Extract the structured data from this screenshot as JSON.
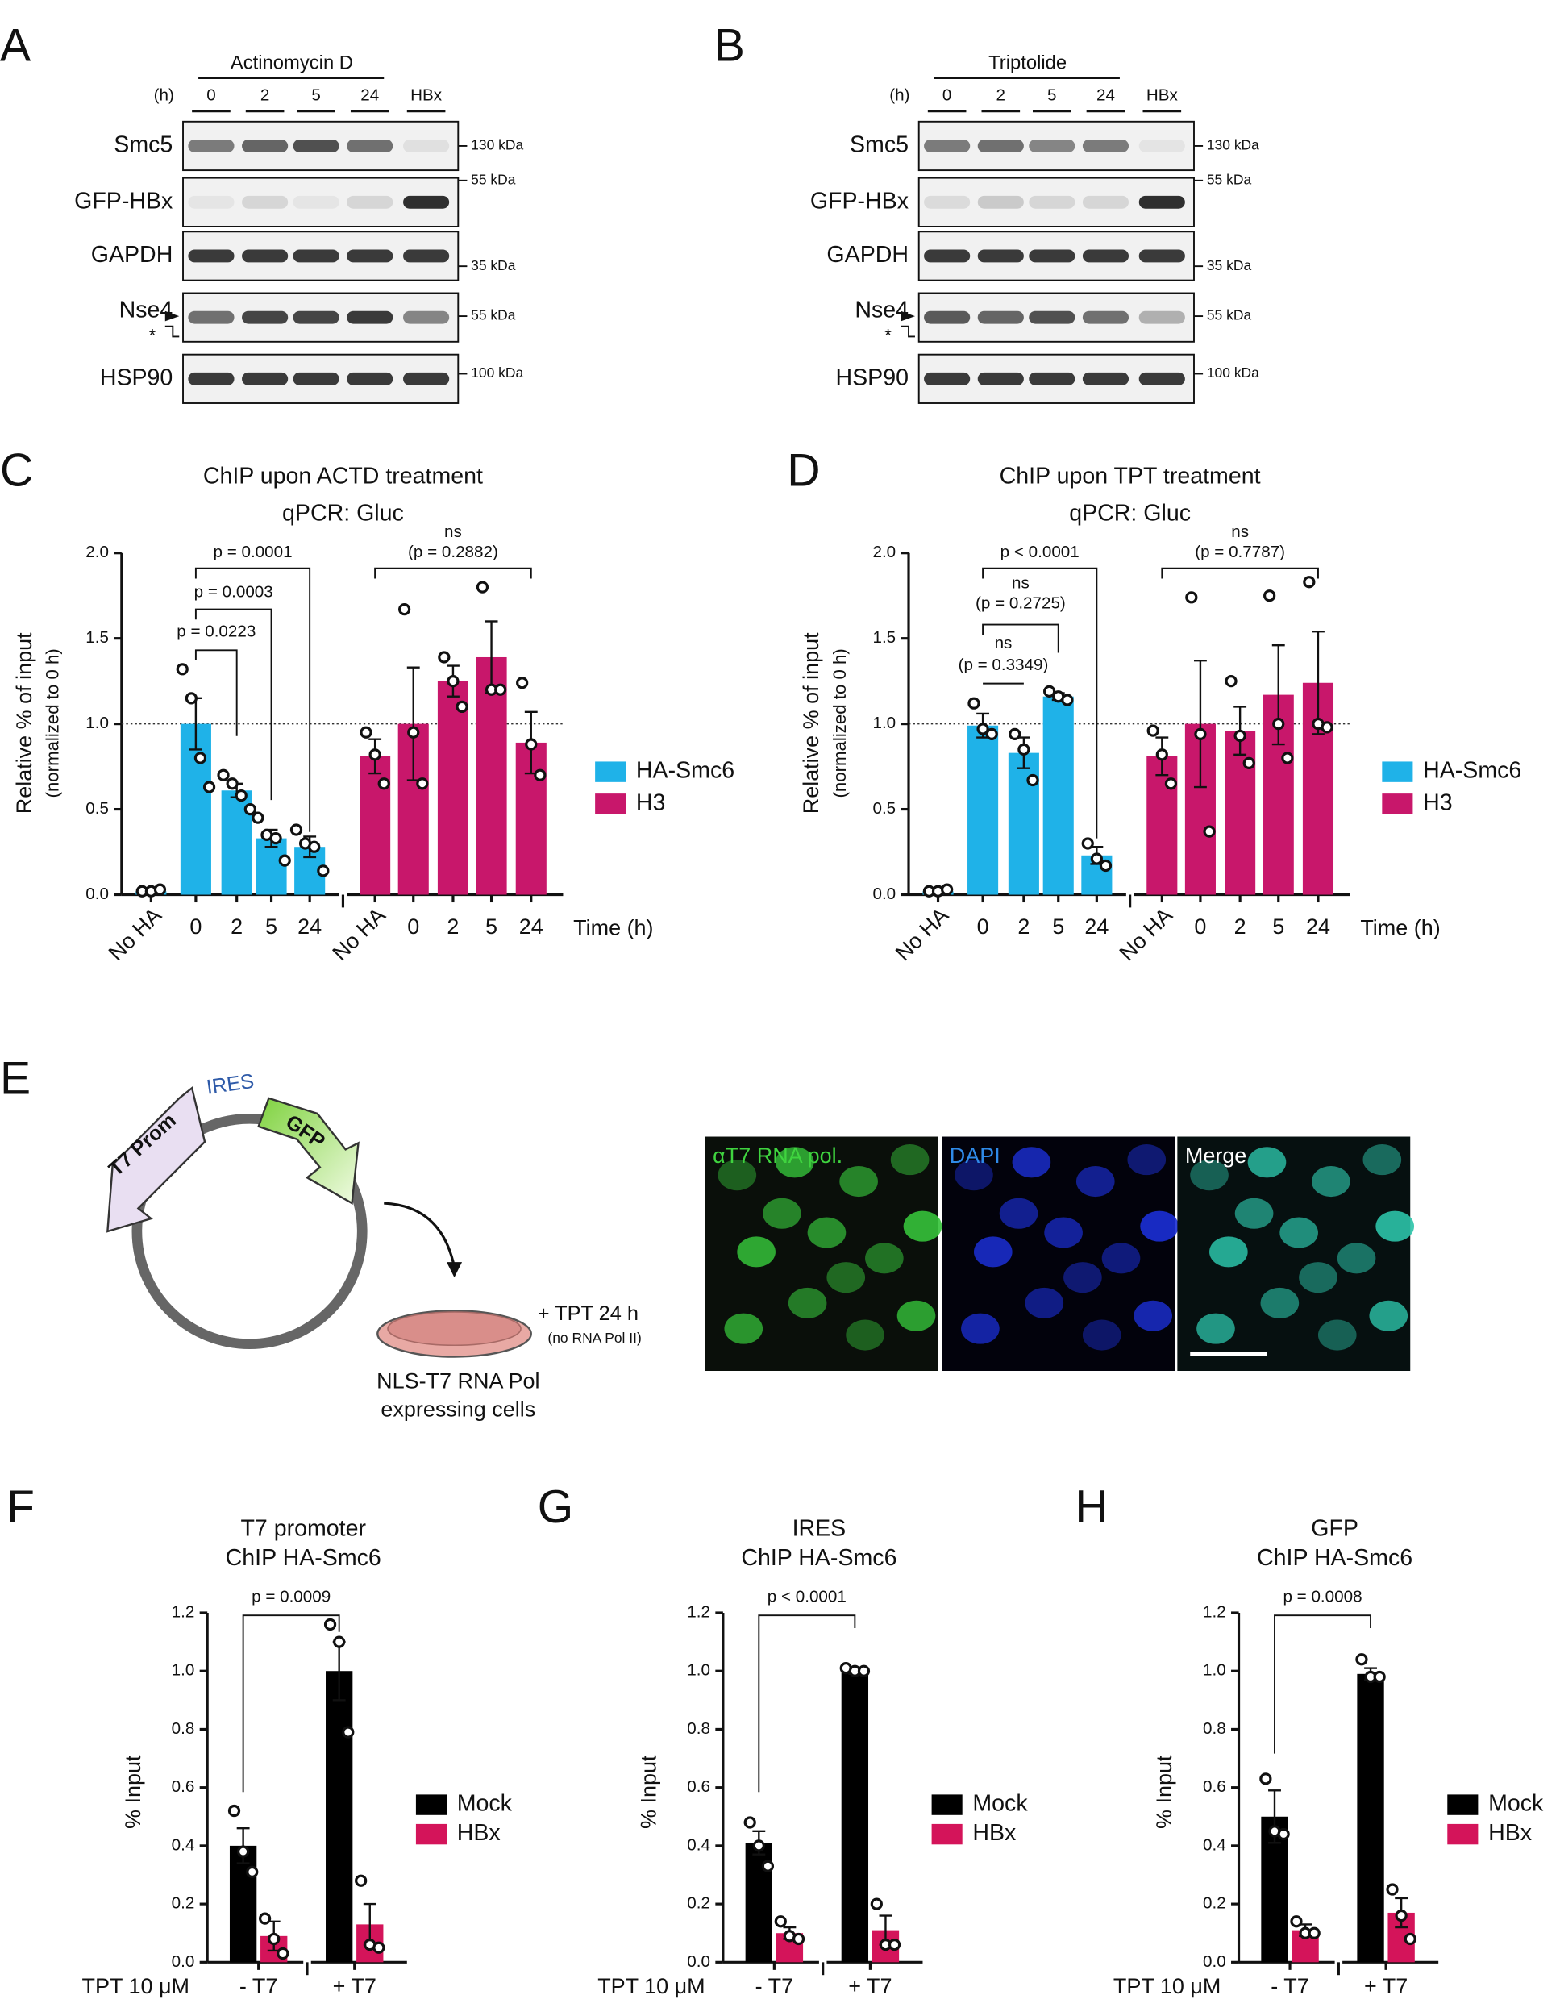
{
  "panel_letters": [
    "A",
    "B",
    "C",
    "D",
    "E",
    "F",
    "G",
    "H"
  ],
  "blots": [
    {
      "treatment": "Actinomycin D",
      "time_unit": "(h)",
      "lanes": [
        "0",
        "2",
        "5",
        "24",
        "HBx"
      ],
      "rows": [
        {
          "label": "Smc5",
          "marker": "130 kDa"
        },
        {
          "label": "GFP-HBx",
          "marker": "55 kDa"
        },
        {
          "label": "GAPDH",
          "marker": "35 kDa"
        },
        {
          "label": "Nse4",
          "marker": "55 kDa",
          "note": "*"
        },
        {
          "label": "HSP90",
          "marker": "100 kDa"
        }
      ]
    },
    {
      "treatment": "Triptolide",
      "time_unit": "(h)",
      "lanes": [
        "0",
        "2",
        "5",
        "24",
        "HBx"
      ],
      "rows": [
        {
          "label": "Smc5",
          "marker": "130 kDa"
        },
        {
          "label": "GFP-HBx",
          "marker": "55 kDa"
        },
        {
          "label": "GAPDH",
          "marker": "35 kDa"
        },
        {
          "label": "Nse4",
          "marker": "55 kDa",
          "note": "*"
        },
        {
          "label": "HSP90",
          "marker": "100 kDa"
        }
      ]
    }
  ],
  "diagram": {
    "plasmid": [
      "T7 Prom",
      "IRES",
      "GFP"
    ],
    "treatment": "+ TPT 24 h",
    "treatment_note": "(no RNA Pol II)",
    "cells": [
      "NLS-T7 RNA Pol",
      "expressing cells"
    ],
    "channels": [
      "αT7 RNA pol.",
      "DAPI",
      "Merge"
    ]
  },
  "chart_data": [
    {
      "type": "bar",
      "title": [
        "ChIP upon ACTD treatment",
        "qPCR: Gluc"
      ],
      "ylabel": [
        "Relative % of input",
        "(normalized to 0 h)"
      ],
      "xlabel": "Time (h)",
      "categories": [
        "No HA",
        "0",
        "2",
        "5",
        "24",
        "No HA",
        "0",
        "2",
        "5",
        "24"
      ],
      "ylim": [
        0,
        2
      ],
      "yticks": [
        {
          "value": 0,
          "label": "0.0"
        },
        {
          "value": 0.5,
          "label": "0.5"
        },
        {
          "value": 1,
          "label": "1.0"
        },
        {
          "value": 1.5,
          "label": "1.5"
        },
        {
          "value": 2,
          "label": "2.0"
        }
      ],
      "reference_line": 1,
      "series": [
        {
          "name": "HA-Smc6",
          "color": "#1fb2e8",
          "values": [
            0.02,
            1.0,
            0.61,
            0.33,
            0.28,
            null,
            null,
            null,
            null,
            null
          ],
          "errors": [
            0.005,
            0.15,
            0.04,
            0.05,
            0.06,
            null,
            null,
            null,
            null,
            null
          ],
          "points": [
            [
              0.02,
              0.02,
              0.03
            ],
            [
              1.32,
              1.15,
              0.8,
              0.63
            ],
            [
              0.7,
              0.65,
              0.58,
              0.5
            ],
            [
              0.45,
              0.35,
              0.33,
              0.2
            ],
            [
              0.38,
              0.3,
              0.28,
              0.14
            ],
            null,
            null,
            null,
            null,
            null
          ]
        },
        {
          "name": "H3",
          "color": "#c8176b",
          "values": [
            null,
            null,
            null,
            null,
            null,
            0.81,
            1.0,
            1.25,
            1.39,
            0.89
          ],
          "errors": [
            null,
            null,
            null,
            null,
            null,
            0.1,
            0.33,
            0.09,
            0.21,
            0.18
          ],
          "points": [
            null,
            null,
            null,
            null,
            null,
            [
              0.95,
              0.82,
              0.65
            ],
            [
              1.67,
              0.95,
              0.65
            ],
            [
              1.39,
              1.25,
              1.1
            ],
            [
              1.8,
              1.2,
              1.2
            ],
            [
              1.24,
              0.88,
              0.7
            ]
          ]
        }
      ],
      "annotations": [
        [
          "p = 0.0001"
        ],
        [
          "p = 0.0003"
        ],
        [
          "p = 0.0223"
        ],
        [
          "ns",
          "(p = 0.2882)"
        ]
      ]
    },
    {
      "type": "bar",
      "title": [
        "ChIP upon TPT treatment",
        "qPCR: Gluc"
      ],
      "ylabel": [
        "Relative % of input",
        "(normalized to 0 h)"
      ],
      "xlabel": "Time (h)",
      "categories": [
        "No HA",
        "0",
        "2",
        "5",
        "24",
        "No HA",
        "0",
        "2",
        "5",
        "24"
      ],
      "ylim": [
        0,
        2
      ],
      "yticks": [
        {
          "value": 0,
          "label": "0.0"
        },
        {
          "value": 0.5,
          "label": "0.5"
        },
        {
          "value": 1,
          "label": "1.0"
        },
        {
          "value": 1.5,
          "label": "1.5"
        },
        {
          "value": 2,
          "label": "2.0"
        }
      ],
      "reference_line": 1,
      "series": [
        {
          "name": "HA-Smc6",
          "color": "#1fb2e8",
          "values": [
            0.02,
            0.99,
            0.83,
            1.16,
            0.23,
            null,
            null,
            null,
            null,
            null
          ],
          "errors": [
            0.005,
            0.07,
            0.09,
            0.02,
            0.05,
            null,
            null,
            null,
            null,
            null
          ],
          "points": [
            [
              0.02,
              0.02,
              0.03
            ],
            [
              1.12,
              0.97,
              0.94
            ],
            [
              0.94,
              0.85,
              0.67
            ],
            [
              1.19,
              1.16,
              1.14
            ],
            [
              0.3,
              0.21,
              0.17
            ],
            null,
            null,
            null,
            null,
            null
          ]
        },
        {
          "name": "H3",
          "color": "#c8176b",
          "values": [
            null,
            null,
            null,
            null,
            null,
            0.81,
            1.0,
            0.96,
            1.17,
            1.24
          ],
          "errors": [
            null,
            null,
            null,
            null,
            null,
            0.11,
            0.37,
            0.14,
            0.29,
            0.3
          ],
          "points": [
            null,
            null,
            null,
            null,
            null,
            [
              0.96,
              0.82,
              0.65
            ],
            [
              1.74,
              0.94,
              0.37
            ],
            [
              1.25,
              0.93,
              0.77
            ],
            [
              1.75,
              1.0,
              0.8
            ],
            [
              1.83,
              1.0,
              0.98
            ]
          ]
        }
      ],
      "annotations": [
        [
          "p < 0.0001"
        ],
        [
          "ns",
          "(p = 0.2725)"
        ],
        [
          "ns",
          "(p = 0.3349)"
        ],
        [
          "ns",
          "(p = 0.7787)"
        ]
      ]
    },
    {
      "type": "bar",
      "title": [
        "T7 promoter",
        "ChIP HA-Smc6"
      ],
      "ylabel": [
        "% Input"
      ],
      "row_label": "TPT 10 μM",
      "categories": [
        "- T7",
        "+ T7"
      ],
      "ylim": [
        0,
        1.2
      ],
      "yticks": [
        {
          "value": 0,
          "label": "0.0"
        },
        {
          "value": 0.2,
          "label": "0.2"
        },
        {
          "value": 0.4,
          "label": "0.4"
        },
        {
          "value": 0.6,
          "label": "0.6"
        },
        {
          "value": 0.8,
          "label": "0.8"
        },
        {
          "value": 1,
          "label": "1.0"
        },
        {
          "value": 1.2,
          "label": "1.2"
        }
      ],
      "series": [
        {
          "name": "Mock",
          "color": "#000000",
          "values": [
            0.4,
            1.0
          ],
          "errors": [
            0.06,
            0.1
          ],
          "points": [
            [
              0.52,
              0.38,
              0.31
            ],
            [
              1.16,
              1.1,
              0.79
            ]
          ]
        },
        {
          "name": "HBx",
          "color": "#d4145a",
          "values": [
            0.09,
            0.13
          ],
          "errors": [
            0.05,
            0.07
          ],
          "points": [
            [
              0.15,
              0.08,
              0.03
            ],
            [
              0.28,
              0.06,
              0.05
            ]
          ]
        }
      ],
      "annotations": [
        [
          "p = 0.0009"
        ]
      ]
    },
    {
      "type": "bar",
      "title": [
        "IRES",
        "ChIP HA-Smc6"
      ],
      "ylabel": [
        "% Input"
      ],
      "row_label": "TPT 10 μM",
      "categories": [
        "- T7",
        "+ T7"
      ],
      "ylim": [
        0,
        1.2
      ],
      "yticks": [
        {
          "value": 0,
          "label": "0.0"
        },
        {
          "value": 0.2,
          "label": "0.2"
        },
        {
          "value": 0.4,
          "label": "0.4"
        },
        {
          "value": 0.6,
          "label": "0.6"
        },
        {
          "value": 0.8,
          "label": "0.8"
        },
        {
          "value": 1,
          "label": "1.0"
        },
        {
          "value": 1.2,
          "label": "1.2"
        }
      ],
      "series": [
        {
          "name": "Mock",
          "color": "#000000",
          "values": [
            0.41,
            1.0
          ],
          "errors": [
            0.04,
            0.01
          ],
          "points": [
            [
              0.48,
              0.4,
              0.33
            ],
            [
              1.01,
              1.0,
              1.0
            ]
          ]
        },
        {
          "name": "HBx",
          "color": "#d4145a",
          "values": [
            0.1,
            0.11
          ],
          "errors": [
            0.02,
            0.05
          ],
          "points": [
            [
              0.14,
              0.09,
              0.08
            ],
            [
              0.2,
              0.06,
              0.06
            ]
          ]
        }
      ],
      "annotations": [
        [
          "p < 0.0001"
        ]
      ]
    },
    {
      "type": "bar",
      "title": [
        "GFP",
        "ChIP HA-Smc6"
      ],
      "ylabel": [
        "% Input"
      ],
      "row_label": "TPT 10 μM",
      "categories": [
        "- T7",
        "+ T7"
      ],
      "ylim": [
        0,
        1.2
      ],
      "yticks": [
        {
          "value": 0,
          "label": "0.0"
        },
        {
          "value": 0.2,
          "label": "0.2"
        },
        {
          "value": 0.4,
          "label": "0.4"
        },
        {
          "value": 0.6,
          "label": "0.6"
        },
        {
          "value": 0.8,
          "label": "0.8"
        },
        {
          "value": 1,
          "label": "1.0"
        },
        {
          "value": 1.2,
          "label": "1.2"
        }
      ],
      "series": [
        {
          "name": "Mock",
          "color": "#000000",
          "values": [
            0.5,
            0.99
          ],
          "errors": [
            0.09,
            0.02
          ],
          "points": [
            [
              0.63,
              0.45,
              0.44
            ],
            [
              1.04,
              0.98,
              0.98
            ]
          ]
        },
        {
          "name": "HBx",
          "color": "#d4145a",
          "values": [
            0.11,
            0.17
          ],
          "errors": [
            0.02,
            0.05
          ],
          "points": [
            [
              0.14,
              0.1,
              0.1
            ],
            [
              0.25,
              0.16,
              0.08
            ]
          ]
        }
      ],
      "annotations": [
        [
          "p = 0.0008"
        ]
      ]
    }
  ]
}
